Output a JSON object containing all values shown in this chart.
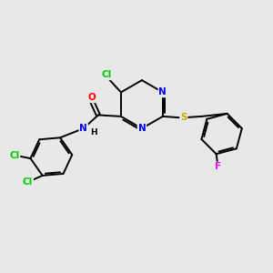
{
  "background_color": "#e8e8e8",
  "bond_color": "#000000",
  "atom_colors": {
    "N": "#0000ff",
    "O": "#ff0000",
    "S": "#ccaa00",
    "Cl": "#00cc00",
    "F": "#ff00ff",
    "H": "#000000",
    "C": "#000000"
  },
  "figsize": [
    3.0,
    3.0
  ],
  "dpi": 100
}
